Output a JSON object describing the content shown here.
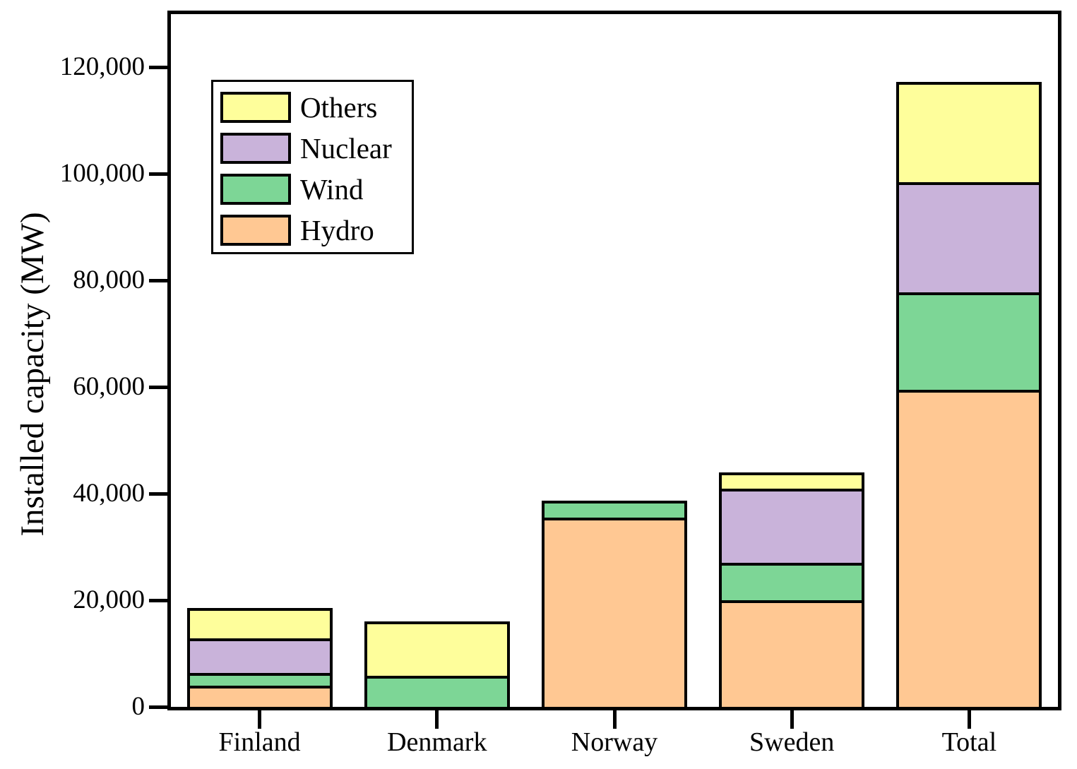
{
  "chart_data": {
    "type": "bar",
    "stacked": true,
    "title": "",
    "xlabel": "",
    "ylabel": "Installed capacity (MW)",
    "categories": [
      "Finland",
      "Denmark",
      "Norway",
      "Sweden",
      "Total"
    ],
    "series": [
      {
        "name": "Hydro",
        "color": "#FFC893",
        "values": [
          4000,
          0,
          35500,
          20000,
          59500
        ]
      },
      {
        "name": "Wind",
        "color": "#7DD696",
        "values": [
          2300,
          5800,
          3200,
          7000,
          18300
        ]
      },
      {
        "name": "Nuclear",
        "color": "#C9B3DA",
        "values": [
          6600,
          0,
          0,
          14000,
          20600
        ]
      },
      {
        "name": "Others",
        "color": "#FEFE9B",
        "values": [
          5700,
          10200,
          0,
          3000,
          18900
        ]
      }
    ],
    "totals": [
      18600,
      16000,
      38700,
      44000,
      117300
    ],
    "ylim": [
      0,
      130000
    ],
    "yticks": [
      {
        "value": 0,
        "label": "0"
      },
      {
        "value": 20000,
        "label": "20,000"
      },
      {
        "value": 40000,
        "label": "40,000"
      },
      {
        "value": 60000,
        "label": "60,000"
      },
      {
        "value": 80000,
        "label": "80,000"
      },
      {
        "value": 100000,
        "label": "100,000"
      },
      {
        "value": 120000,
        "label": "120,000"
      }
    ],
    "legend": {
      "position": "upper-left",
      "order": [
        "Others",
        "Nuclear",
        "Wind",
        "Hydro"
      ]
    },
    "grid": false,
    "colors": {
      "frame": "#000000",
      "bar_outline": "#000000",
      "background": "#FFFFFF"
    }
  }
}
